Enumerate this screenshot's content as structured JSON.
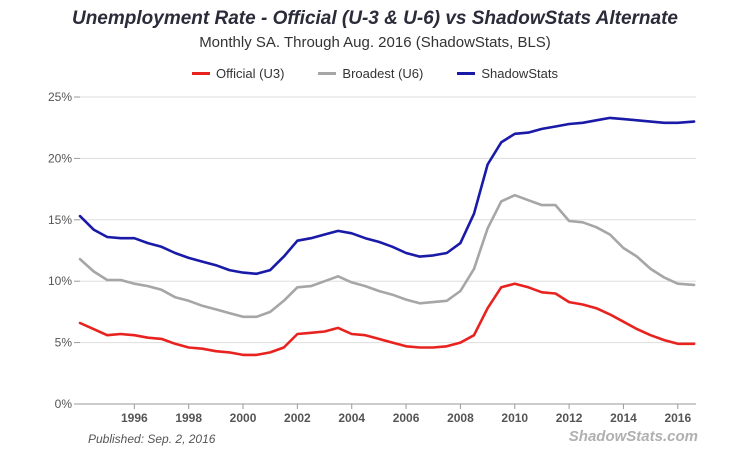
{
  "chart_data": {
    "type": "line",
    "title": "Unemployment Rate - Official (U-3 & U-6) vs ShadowStats Alternate",
    "subtitle": "Monthly SA. Through Aug. 2016  (ShadowStats, BLS)",
    "xlabel": "",
    "ylabel": "",
    "xlim": [
      1994.0,
      2016.67
    ],
    "ylim": [
      0,
      25
    ],
    "y_ticks": [
      0,
      5,
      10,
      15,
      20,
      25
    ],
    "y_tick_labels": [
      "0%",
      "5%",
      "10%",
      "15%",
      "20%",
      "25%"
    ],
    "x_ticks": [
      1996,
      1998,
      2000,
      2002,
      2004,
      2006,
      2008,
      2010,
      2012,
      2014,
      2016
    ],
    "x_tick_labels": [
      "1996",
      "1998",
      "2000",
      "2002",
      "2004",
      "2006",
      "2008",
      "2010",
      "2012",
      "2014",
      "2016"
    ],
    "grid": "horizontal",
    "legend": "top-center",
    "series": [
      {
        "name": "Official (U3)",
        "color": "#e8231f",
        "x": [
          1994.0,
          1994.5,
          1995.0,
          1995.5,
          1996.0,
          1996.5,
          1997.0,
          1997.5,
          1998.0,
          1998.5,
          1999.0,
          1999.5,
          2000.0,
          2000.5,
          2001.0,
          2001.5,
          2002.0,
          2002.5,
          2003.0,
          2003.5,
          2004.0,
          2004.5,
          2005.0,
          2005.5,
          2006.0,
          2006.5,
          2007.0,
          2007.5,
          2008.0,
          2008.5,
          2009.0,
          2009.5,
          2010.0,
          2010.5,
          2011.0,
          2011.5,
          2012.0,
          2012.5,
          2013.0,
          2013.5,
          2014.0,
          2014.5,
          2015.0,
          2015.5,
          2016.0,
          2016.6
        ],
        "values": [
          6.6,
          6.1,
          5.6,
          5.7,
          5.6,
          5.4,
          5.3,
          4.9,
          4.6,
          4.5,
          4.3,
          4.2,
          4.0,
          4.0,
          4.2,
          4.6,
          5.7,
          5.8,
          5.9,
          6.2,
          5.7,
          5.6,
          5.3,
          5.0,
          4.7,
          4.6,
          4.6,
          4.7,
          5.0,
          5.6,
          7.8,
          9.5,
          9.8,
          9.5,
          9.1,
          9.0,
          8.3,
          8.1,
          7.8,
          7.3,
          6.7,
          6.1,
          5.6,
          5.2,
          4.9,
          4.9
        ]
      },
      {
        "name": "Broadest (U6)",
        "color": "#a6a6a6",
        "x": [
          1994.0,
          1994.5,
          1995.0,
          1995.5,
          1996.0,
          1996.5,
          1997.0,
          1997.5,
          1998.0,
          1998.5,
          1999.0,
          1999.5,
          2000.0,
          2000.5,
          2001.0,
          2001.5,
          2002.0,
          2002.5,
          2003.0,
          2003.5,
          2004.0,
          2004.5,
          2005.0,
          2005.5,
          2006.0,
          2006.5,
          2007.0,
          2007.5,
          2008.0,
          2008.5,
          2009.0,
          2009.5,
          2010.0,
          2010.5,
          2011.0,
          2011.5,
          2012.0,
          2012.5,
          2013.0,
          2013.5,
          2014.0,
          2014.5,
          2015.0,
          2015.5,
          2016.0,
          2016.6
        ],
        "values": [
          11.8,
          10.8,
          10.1,
          10.1,
          9.8,
          9.6,
          9.3,
          8.7,
          8.4,
          8.0,
          7.7,
          7.4,
          7.1,
          7.1,
          7.5,
          8.4,
          9.5,
          9.6,
          10.0,
          10.4,
          9.9,
          9.6,
          9.2,
          8.9,
          8.5,
          8.2,
          8.3,
          8.4,
          9.2,
          11.0,
          14.3,
          16.5,
          17.0,
          16.6,
          16.2,
          16.2,
          14.9,
          14.8,
          14.4,
          13.8,
          12.7,
          12.0,
          11.0,
          10.3,
          9.8,
          9.7
        ]
      },
      {
        "name": "ShadowStats",
        "color": "#1a1aa8",
        "x": [
          1994.0,
          1994.5,
          1995.0,
          1995.5,
          1996.0,
          1996.5,
          1997.0,
          1997.5,
          1998.0,
          1998.5,
          1999.0,
          1999.5,
          2000.0,
          2000.5,
          2001.0,
          2001.5,
          2002.0,
          2002.5,
          2003.0,
          2003.5,
          2004.0,
          2004.5,
          2005.0,
          2005.5,
          2006.0,
          2006.5,
          2007.0,
          2007.5,
          2008.0,
          2008.5,
          2009.0,
          2009.5,
          2010.0,
          2010.5,
          2011.0,
          2011.5,
          2012.0,
          2012.5,
          2013.0,
          2013.5,
          2014.0,
          2014.5,
          2015.0,
          2015.5,
          2016.0,
          2016.6
        ],
        "values": [
          15.3,
          14.2,
          13.6,
          13.5,
          13.5,
          13.1,
          12.8,
          12.3,
          11.9,
          11.6,
          11.3,
          10.9,
          10.7,
          10.6,
          10.9,
          12.0,
          13.3,
          13.5,
          13.8,
          14.1,
          13.9,
          13.5,
          13.2,
          12.8,
          12.3,
          12.0,
          12.1,
          12.3,
          13.1,
          15.5,
          19.5,
          21.3,
          22.0,
          22.1,
          22.4,
          22.6,
          22.8,
          22.9,
          23.1,
          23.3,
          23.2,
          23.1,
          23.0,
          22.9,
          22.9,
          23.0
        ]
      }
    ]
  },
  "footer": {
    "published": "Published: Sep. 2, 2016",
    "brand": "ShadowStats.com"
  }
}
